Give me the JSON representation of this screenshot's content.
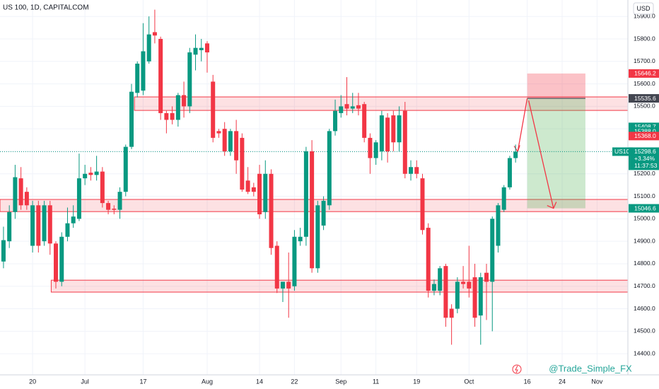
{
  "chart_data": {
    "type": "candlestick",
    "title": "US 100, 1D, CAPITALCOM",
    "currency": "USD",
    "watermark": "@Trade_Simple_FX",
    "up_color": "#089981",
    "down_color": "#f23645",
    "x": [
      0,
      1,
      2,
      3,
      4,
      5,
      6,
      7,
      8,
      9,
      10,
      11,
      12,
      13,
      14,
      15,
      16,
      17,
      18,
      19,
      20,
      21,
      22,
      23,
      24,
      25,
      26,
      27,
      28,
      29,
      30,
      31,
      32,
      33,
      34,
      35,
      36,
      37,
      38,
      39,
      40,
      41,
      42,
      43,
      44,
      45,
      46,
      47,
      48,
      49,
      50,
      51,
      52,
      53,
      54,
      55,
      56,
      57,
      58,
      59,
      60,
      61,
      62,
      63,
      64,
      65,
      66,
      67,
      68,
      69,
      70,
      71,
      72,
      73,
      74,
      75,
      76,
      77,
      78,
      79,
      80,
      81,
      82,
      83,
      84,
      85,
      86,
      87,
      88
    ],
    "open": [
      14810,
      14900,
      15030,
      15180,
      15120,
      14880,
      15060,
      14900,
      15060,
      14890,
      14720,
      14920,
      14980,
      15000,
      15180,
      15205,
      15195,
      15210,
      15070,
      15045,
      15040,
      15120,
      15320,
      15560,
      15570,
      15700,
      15830,
      15800,
      15470,
      15470,
      15440,
      15550,
      15500,
      15730,
      15750,
      15780,
      15610,
      15390,
      15400,
      15300,
      15390,
      15360,
      15170,
      15140,
      15200,
      15030,
      15200,
      14880,
      14690,
      14720,
      14700,
      14900,
      14920,
      15300,
      14780,
      14970,
      15060,
      15390,
      15470,
      15510,
      15490,
      15505,
      15510,
      15360,
      15270,
      15300,
      15450,
      15460,
      15340,
      15480,
      15200,
      15230,
      15180,
      14960,
      14680,
      14680,
      14790,
      14600,
      14600,
      14720,
      14720,
      14740,
      14570,
      14760,
      14720,
      14880,
      15040,
      15140,
      15270
    ],
    "high": [
      14965,
      15060,
      15240,
      15230,
      15140,
      15080,
      15080,
      15080,
      15080,
      14900,
      14940,
      15050,
      15060,
      15290,
      15240,
      15230,
      15280,
      15230,
      15080,
      15060,
      15140,
      15330,
      15600,
      15700,
      15870,
      15900,
      15930,
      15810,
      15480,
      15500,
      15560,
      15610,
      15760,
      15820,
      15800,
      15790,
      15640,
      15400,
      15430,
      15400,
      15440,
      15380,
      15230,
      15160,
      15240,
      15260,
      15220,
      14900,
      14720,
      14850,
      14950,
      14960,
      15320,
      15350,
      15080,
      15100,
      15400,
      15530,
      15550,
      15630,
      15560,
      15560,
      15520,
      15380,
      15350,
      15480,
      15470,
      15480,
      15500,
      15520,
      15260,
      15260,
      15200,
      14980,
      14730,
      14790,
      14800,
      14620,
      14740,
      14790,
      14880,
      14800,
      14760,
      14800,
      15010,
      15070,
      15150,
      15280,
      15330
    ],
    "low": [
      14780,
      14870,
      15000,
      15040,
      15040,
      14850,
      14850,
      14880,
      14840,
      14690,
      14700,
      14900,
      14960,
      14990,
      15150,
      15170,
      15170,
      15050,
      15020,
      15020,
      15000,
      15100,
      15310,
      15540,
      15550,
      15690,
      15780,
      15440,
      15380,
      15420,
      15410,
      15450,
      15470,
      15660,
      15700,
      15650,
      15340,
      15360,
      15280,
      15280,
      15200,
      15120,
      15110,
      15100,
      15000,
      15000,
      14840,
      14670,
      14630,
      14560,
      14680,
      14880,
      14880,
      14760,
      14760,
      14950,
      15040,
      15370,
      15450,
      15460,
      15470,
      15460,
      15340,
      15200,
      15240,
      15260,
      15250,
      15300,
      15300,
      15180,
      15170,
      15180,
      14930,
      14650,
      14660,
      14660,
      14520,
      14440,
      14580,
      14690,
      14650,
      14520,
      14440,
      14550,
      14500,
      14850,
      15030,
      15130,
      15250
    ],
    "close": [
      14905,
      15030,
      15185,
      15060,
      15060,
      15060,
      14880,
      15060,
      14890,
      14720,
      14920,
      14980,
      15010,
      15180,
      15200,
      15195,
      15210,
      15070,
      15040,
      15040,
      15120,
      15320,
      15565,
      15690,
      15745,
      15820,
      15815,
      15470,
      15440,
      15440,
      15550,
      15500,
      15740,
      15760,
      15760,
      15740,
      15360,
      15380,
      15300,
      15390,
      15260,
      15130,
      15120,
      15120,
      15020,
      15200,
      14870,
      14690,
      14720,
      14690,
      14920,
      14920,
      15300,
      14780,
      15060,
      15080,
      15390,
      15480,
      15500,
      15490,
      15500,
      15490,
      15360,
      15270,
      15340,
      15460,
      15300,
      15340,
      15460,
      15200,
      15230,
      15200,
      14950,
      14680,
      14710,
      14780,
      14560,
      14560,
      14720,
      14710,
      14690,
      14560,
      14740,
      14720,
      15000,
      15060,
      15140,
      15270,
      15298.6
    ],
    "xlim": [
      -0.6,
      107.3
    ],
    "xticks": [
      {
        "value": 5,
        "label": "20"
      },
      {
        "value": 14,
        "label": "Jul"
      },
      {
        "value": 24,
        "label": "17"
      },
      {
        "value": 35,
        "label": "Aug"
      },
      {
        "value": 44,
        "label": "14"
      },
      {
        "value": 50,
        "label": "22"
      },
      {
        "value": 58,
        "label": "Sep"
      },
      {
        "value": 64,
        "label": "11"
      },
      {
        "value": 71,
        "label": "19"
      },
      {
        "value": 80,
        "label": "Oct"
      },
      {
        "value": 90,
        "label": "16"
      },
      {
        "value": 96,
        "label": "24"
      },
      {
        "value": 102,
        "label": "Nov"
      }
    ],
    "ylim": [
      14306,
      15973
    ],
    "yticks": [
      {
        "value": 14400,
        "label": "14400.0"
      },
      {
        "value": 14500,
        "label": "14500.0"
      },
      {
        "value": 14600,
        "label": "14600.0"
      },
      {
        "value": 14700,
        "label": "14700.0"
      },
      {
        "value": 14800,
        "label": "14800.0"
      },
      {
        "value": 14900,
        "label": "14900.0"
      },
      {
        "value": 15000,
        "label": "15000.0"
      },
      {
        "value": 15100,
        "label": "15100.0"
      },
      {
        "value": 15200,
        "label": "15200.0"
      },
      {
        "value": 15300,
        "label": "15300.0"
      },
      {
        "value": 15400,
        "label": "15400.0"
      },
      {
        "value": 15500,
        "label": "15500.0"
      },
      {
        "value": 15600,
        "label": "15600.0"
      },
      {
        "value": 15700,
        "label": "15700.0"
      },
      {
        "value": 15800,
        "label": "15800.0"
      },
      {
        "value": 15900,
        "label": "15900.0"
      }
    ],
    "zones": [
      {
        "low": 15482,
        "high": 15542,
        "x0": 22.5,
        "x1": 107.3
      },
      {
        "low": 15032,
        "high": 15086,
        "x0": -0.6,
        "x1": 107.3
      },
      {
        "low": 14674,
        "high": 14727,
        "x0": 8.2,
        "x1": 107.3
      }
    ],
    "position": {
      "entry": 15535.6,
      "stop": 15646.2,
      "target": 15046.6,
      "x0": 90,
      "x1": 100
    },
    "current": {
      "symbol": "US100",
      "value": 15298.6,
      "change": "+3.34%",
      "countdown": "11:37:53"
    },
    "price_labels": [
      {
        "value": 15646.2,
        "label": "15646.2",
        "color": "#f23645"
      },
      {
        "value": 15535.6,
        "label": "15535.6",
        "color": "#434651"
      },
      {
        "value": 15408.7,
        "label": "15408.7",
        "color": "#089981"
      },
      {
        "value": 15388.0,
        "label": "15388.0",
        "color": "#089981"
      },
      {
        "value": 15368.0,
        "label": "15368.0",
        "color": "#f23645"
      },
      {
        "value": 15046.6,
        "label": "15046.6",
        "color": "#089981"
      }
    ]
  }
}
